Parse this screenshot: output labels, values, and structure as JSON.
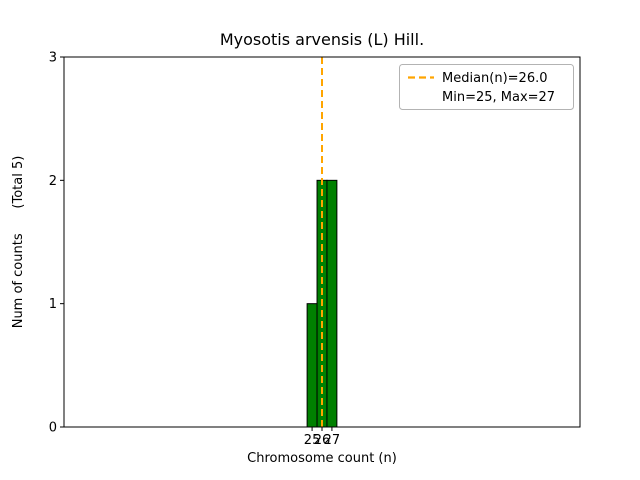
{
  "chart_data": {
    "type": "bar",
    "title": "Myosotis arvensis (L) Hill.",
    "xlabel": "Chromosome count (n)",
    "ylabel": "Num of counts      (Total 5)",
    "x": [
      25,
      26,
      27
    ],
    "values": [
      1,
      2,
      2
    ],
    "total_counts": 5,
    "bar_width": 1,
    "xlim": [
      0,
      52
    ],
    "ylim": [
      0,
      3
    ],
    "x_ticks": [
      25,
      26,
      27
    ],
    "y_ticks": [
      0,
      1,
      2,
      3
    ],
    "median": 26.0,
    "min": 25,
    "max": 27,
    "grid": false,
    "legend_position": "upper right",
    "legend_entries": [
      "Median(n)=26.0",
      "Min=25, Max=27"
    ],
    "colors": {
      "bar_fill": "#008000",
      "bar_edge": "#000000",
      "median_line": "#ffa500",
      "axis": "#000000",
      "background": "#ffffff",
      "legend_border": "#b3b3b3"
    }
  }
}
